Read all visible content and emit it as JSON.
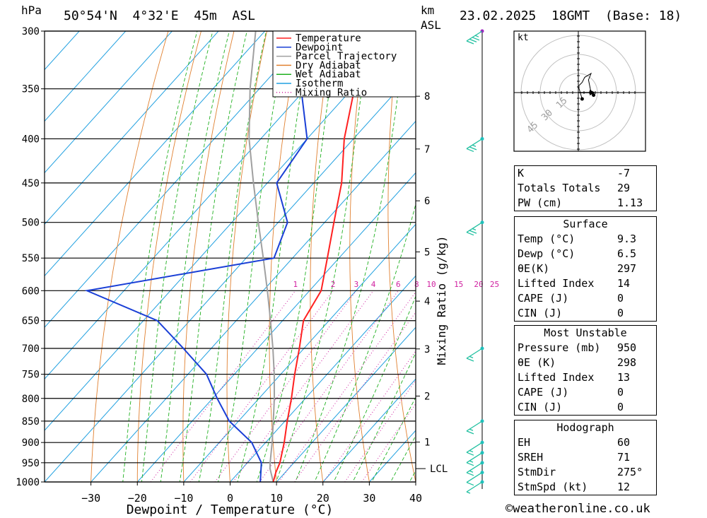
{
  "header": {
    "pressure_unit": "hPa",
    "location": "50°54'N  4°32'E  45m  ASL",
    "km_label": "km",
    "asl_label": "ASL",
    "datetime": "23.02.2025  18GMT  (Base: 18)"
  },
  "chart_data": {
    "type": "line",
    "xlabel": "Dewpoint / Temperature (°C)",
    "ylabel": "hPa",
    "mixing_ratio_axis_label": "Mixing Ratio (g/kg)",
    "xlim": [
      -40,
      40
    ],
    "pressure_range": [
      1000,
      300
    ],
    "x_ticks": [
      "−30",
      "−20",
      "−10",
      "0",
      "10",
      "20",
      "30",
      "40"
    ],
    "x_tick_values": [
      -30,
      -20,
      -10,
      0,
      10,
      20,
      30,
      40
    ],
    "pressure_levels": [
      300,
      350,
      400,
      450,
      500,
      550,
      600,
      650,
      700,
      750,
      800,
      850,
      900,
      950,
      1000
    ],
    "km_ticks": [
      {
        "label": "8",
        "p": 357
      },
      {
        "label": "7",
        "p": 411
      },
      {
        "label": "6",
        "p": 472
      },
      {
        "label": "5",
        "p": 541
      },
      {
        "label": "4",
        "p": 617
      },
      {
        "label": "3",
        "p": 701
      },
      {
        "label": "2",
        "p": 795
      },
      {
        "label": "1",
        "p": 899
      }
    ],
    "lcl": {
      "label": "LCL",
      "p": 965
    },
    "mixing_ratio_labels": [
      {
        "label": "1",
        "w": 1
      },
      {
        "label": "2",
        "w": 2
      },
      {
        "label": "3",
        "w": 3
      },
      {
        "label": "4",
        "w": 4
      },
      {
        "label": "6",
        "w": 6
      },
      {
        "label": "8",
        "w": 8
      },
      {
        "label": "10",
        "w": 10
      },
      {
        "label": "15",
        "w": 15
      },
      {
        "label": "20",
        "w": 20
      },
      {
        "label": "25",
        "w": 25
      }
    ],
    "legend": [
      "Temperature",
      "Dewpoint",
      "Parcel Trajectory",
      "Dry Adiabat",
      "Wet Adiabat",
      "Isotherm",
      "Mixing Ratio"
    ],
    "colors": {
      "temperature": "#ff2020",
      "dewpoint": "#1a3fd6",
      "parcel": "#a0a0a0",
      "dry_adiabat": "#e08030",
      "wet_adiabat": "#20b020",
      "isotherm": "#20a0e0",
      "mixing_ratio": "#d020a0",
      "wind": "#20c0a0"
    },
    "series": [
      {
        "name": "Temperature",
        "points": [
          {
            "p": 1000,
            "t": 9.3
          },
          {
            "p": 975,
            "t": 8.0
          },
          {
            "p": 950,
            "t": 7.0
          },
          {
            "p": 900,
            "t": 4.0
          },
          {
            "p": 850,
            "t": 0.5
          },
          {
            "p": 800,
            "t": -3.0
          },
          {
            "p": 750,
            "t": -7.0
          },
          {
            "p": 700,
            "t": -11.0
          },
          {
            "p": 650,
            "t": -15.5
          },
          {
            "p": 600,
            "t": -17.5
          },
          {
            "p": 550,
            "t": -22.5
          },
          {
            "p": 500,
            "t": -28.0
          },
          {
            "p": 450,
            "t": -34.0
          },
          {
            "p": 400,
            "t": -42.0
          },
          {
            "p": 350,
            "t": -49.5
          },
          {
            "p": 300,
            "t": -56.0
          }
        ]
      },
      {
        "name": "Dewpoint",
        "points": [
          {
            "p": 1000,
            "t": 6.5
          },
          {
            "p": 950,
            "t": 3.0
          },
          {
            "p": 900,
            "t": -3.0
          },
          {
            "p": 850,
            "t": -12.0
          },
          {
            "p": 800,
            "t": -19.0
          },
          {
            "p": 750,
            "t": -26.0
          },
          {
            "p": 700,
            "t": -36.0
          },
          {
            "p": 650,
            "t": -47.0
          },
          {
            "p": 600,
            "t": -68.0
          },
          {
            "p": 550,
            "t": -34.0
          },
          {
            "p": 500,
            "t": -38.0
          },
          {
            "p": 450,
            "t": -48.0
          },
          {
            "p": 400,
            "t": -50.0
          },
          {
            "p": 350,
            "t": -61.0
          },
          {
            "p": 300,
            "t": -67.0
          }
        ]
      },
      {
        "name": "Parcel Trajectory",
        "points": [
          {
            "p": 1000,
            "t": 9.3
          },
          {
            "p": 965,
            "t": 6.0
          },
          {
            "p": 950,
            "t": 4.9
          },
          {
            "p": 900,
            "t": 1.4
          },
          {
            "p": 850,
            "t": -2.5
          },
          {
            "p": 800,
            "t": -6.7
          },
          {
            "p": 750,
            "t": -11.4
          },
          {
            "p": 700,
            "t": -16.7
          },
          {
            "p": 650,
            "t": -22.6
          },
          {
            "p": 600,
            "t": -29.1
          },
          {
            "p": 550,
            "t": -36.3
          },
          {
            "p": 500,
            "t": -44.3
          },
          {
            "p": 450,
            "t": -53.0
          },
          {
            "p": 400,
            "t": -62.5
          },
          {
            "p": 350,
            "t": -72.0
          },
          {
            "p": 300,
            "t": -82.0
          }
        ]
      }
    ],
    "wind_barbs": [
      {
        "p": 1000,
        "speed_kt": 5
      },
      {
        "p": 975,
        "speed_kt": 10
      },
      {
        "p": 950,
        "speed_kt": 15
      },
      {
        "p": 925,
        "speed_kt": 15
      },
      {
        "p": 900,
        "speed_kt": 15
      },
      {
        "p": 850,
        "speed_kt": 15
      },
      {
        "p": 700,
        "speed_kt": 15
      },
      {
        "p": 500,
        "speed_kt": 25
      },
      {
        "p": 400,
        "speed_kt": 25
      },
      {
        "p": 300,
        "speed_kt": 35
      }
    ],
    "hodograph": {
      "unit_label": "kt",
      "ring_labels": [
        "15",
        "30",
        "45"
      ],
      "trace_kt": [
        [
          3,
          -5
        ],
        [
          0,
          5
        ],
        [
          3,
          8
        ],
        [
          5,
          12
        ],
        [
          10,
          15
        ],
        [
          8,
          10
        ],
        [
          10,
          0
        ],
        [
          12,
          -2
        ]
      ]
    }
  },
  "indices": {
    "k_label": "K",
    "k_value": "-7",
    "tt_label": "Totals Totals",
    "tt_value": "29",
    "pw_label": "PW (cm)",
    "pw_value": "1.13"
  },
  "surface": {
    "title": "Surface",
    "temp_label": "Temp (°C)",
    "temp_value": "9.3",
    "dewp_label": "Dewp (°C)",
    "dewp_value": "6.5",
    "theta_label": "θE(K)",
    "theta_value": "297",
    "li_label": "Lifted Index",
    "li_value": "14",
    "cape_label": "CAPE (J)",
    "cape_value": "0",
    "cin_label": "CIN (J)",
    "cin_value": "0"
  },
  "most_unstable": {
    "title": "Most Unstable",
    "pres_label": "Pressure (mb)",
    "pres_value": "950",
    "theta_label": "θE (K)",
    "theta_value": "298",
    "li_label": "Lifted Index",
    "li_value": "13",
    "cape_label": "CAPE (J)",
    "cape_value": "0",
    "cin_label": "CIN (J)",
    "cin_value": "0"
  },
  "hodograph_table": {
    "title": "Hodograph",
    "eh_label": "EH",
    "eh_value": "60",
    "sreh_label": "SREH",
    "sreh_value": "71",
    "stmdir_label": "StmDir",
    "stmdir_value": "275°",
    "stmspd_label": "StmSpd (kt)",
    "stmspd_value": "12"
  },
  "footer": {
    "copyright": "©weatheronline.co.uk"
  }
}
